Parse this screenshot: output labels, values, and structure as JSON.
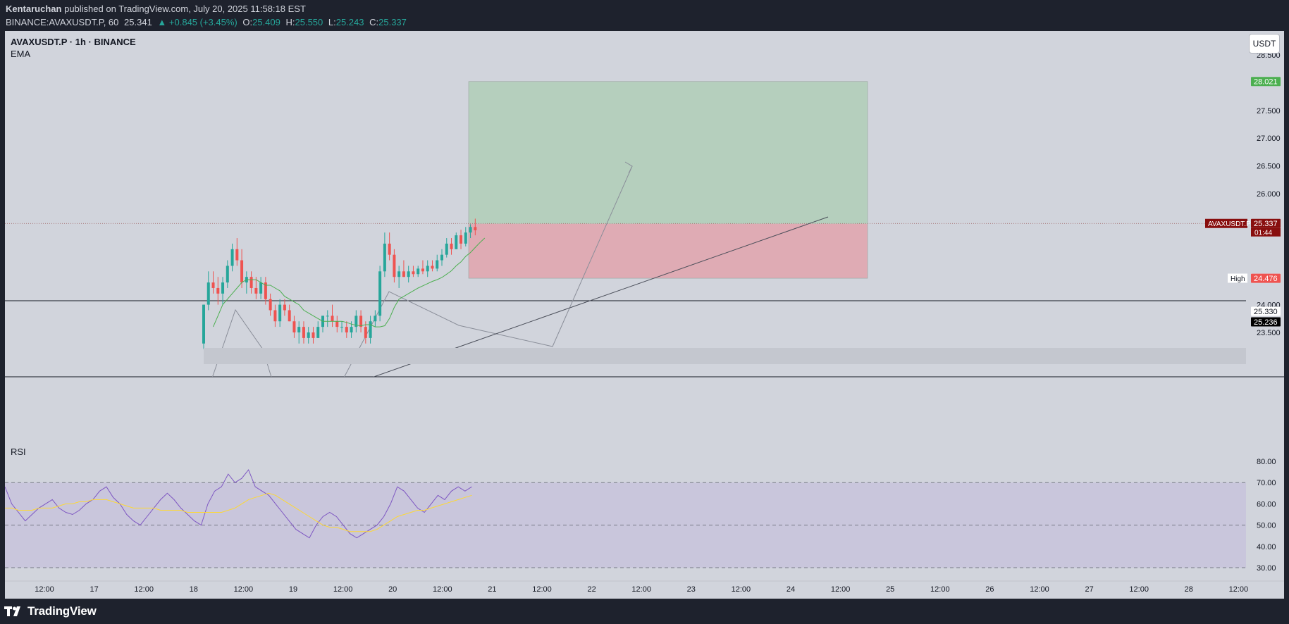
{
  "header": {
    "author": "Kentaruchan",
    "published": "published on TradingView.com, July 20, 2025 11:58:18 EST",
    "symbol_line": "BINANCE:AVAXUSDT.P, 60",
    "last": "25.341",
    "change": "▲ +0.845 (+3.45%)",
    "open_label": "O:",
    "open": "25.409",
    "high_label": "H:",
    "high": "25.550",
    "low_label": "L:",
    "low": "25.243",
    "close_label": "C:",
    "close": "25.337"
  },
  "legend": {
    "symbol": "AVAXUSDT.P · 1h · BINANCE",
    "indicator": "EMA",
    "rsi": "RSI"
  },
  "currency_button": "USDT",
  "brand": "TradingView",
  "colors": {
    "background": "#d1d4dc",
    "up": "#26a69a",
    "down": "#ef5350",
    "profit_zone": "#b5cfbd",
    "loss_zone": "#dfabb4",
    "ema": "#4caf50",
    "rsi": "#7e57c2",
    "rsi_ma": "#fdd835",
    "rsi_band": "#c9c6dc"
  },
  "chart_data": {
    "type": "candlestick",
    "symbol": "AVAXUSDT.P",
    "timeframe": "1h",
    "y_ticks": [
      "28.500",
      "27.500",
      "27.000",
      "26.500",
      "26.000",
      "24.000",
      "23.500"
    ],
    "x_ticks": [
      "12:00",
      "17",
      "12:00",
      "18",
      "12:00",
      "19",
      "12:00",
      "20",
      "12:00",
      "21",
      "12:00",
      "22",
      "12:00",
      "23",
      "12:00",
      "24",
      "12:00",
      "25",
      "12:00",
      "26",
      "12:00",
      "27",
      "12:00",
      "28",
      "12:00"
    ],
    "ylim": [
      23.4,
      28.9
    ],
    "price_labels": [
      {
        "name": "target",
        "text": "28.021",
        "value": 28.021,
        "color": "#4caf50"
      },
      {
        "name": "high",
        "tag": "High",
        "text": "25.550",
        "value": 25.55
      },
      {
        "name": "current",
        "tag": "AVAXUSDT.P",
        "text": "25.337",
        "sub": "01:44",
        "value": 25.337,
        "color": "#880e0e"
      },
      {
        "name": "line",
        "text": "25.330",
        "value": 25.33
      },
      {
        "name": "ema",
        "text": "25.236",
        "value": 25.236,
        "color": "#000000"
      },
      {
        "name": "stop",
        "text": "24.476",
        "value": 24.476,
        "color": "#ef5350"
      }
    ],
    "position": {
      "entry": 25.33,
      "target": 28.021,
      "stop": 24.476
    },
    "candles": [
      {
        "o": 23.3,
        "h": 24.0,
        "l": 23.2,
        "c": 24.0
      },
      {
        "o": 24.0,
        "h": 24.6,
        "l": 23.9,
        "c": 24.4
      },
      {
        "o": 24.4,
        "h": 24.6,
        "l": 24.2,
        "c": 24.3
      },
      {
        "o": 24.3,
        "h": 24.5,
        "l": 24.0,
        "c": 24.2
      },
      {
        "o": 24.2,
        "h": 24.5,
        "l": 24.0,
        "c": 24.4
      },
      {
        "o": 24.4,
        "h": 24.8,
        "l": 24.3,
        "c": 24.7
      },
      {
        "o": 24.7,
        "h": 25.1,
        "l": 24.6,
        "c": 25.0
      },
      {
        "o": 25.0,
        "h": 25.2,
        "l": 24.7,
        "c": 24.8
      },
      {
        "o": 24.8,
        "h": 25.0,
        "l": 24.3,
        "c": 24.4
      },
      {
        "o": 24.4,
        "h": 24.6,
        "l": 24.2,
        "c": 24.5
      },
      {
        "o": 24.5,
        "h": 24.6,
        "l": 24.2,
        "c": 24.3
      },
      {
        "o": 24.3,
        "h": 24.5,
        "l": 24.1,
        "c": 24.2
      },
      {
        "o": 24.2,
        "h": 24.5,
        "l": 24.1,
        "c": 24.4
      },
      {
        "o": 24.4,
        "h": 24.5,
        "l": 24.0,
        "c": 24.1
      },
      {
        "o": 24.1,
        "h": 24.2,
        "l": 23.8,
        "c": 23.9
      },
      {
        "o": 23.9,
        "h": 24.0,
        "l": 23.6,
        "c": 23.7
      },
      {
        "o": 23.7,
        "h": 24.1,
        "l": 23.6,
        "c": 24.0
      },
      {
        "o": 24.0,
        "h": 24.1,
        "l": 23.8,
        "c": 23.9
      },
      {
        "o": 23.9,
        "h": 24.0,
        "l": 23.7,
        "c": 23.7
      },
      {
        "o": 23.7,
        "h": 23.8,
        "l": 23.4,
        "c": 23.5
      },
      {
        "o": 23.5,
        "h": 23.7,
        "l": 23.3,
        "c": 23.6
      },
      {
        "o": 23.6,
        "h": 23.7,
        "l": 23.3,
        "c": 23.4
      },
      {
        "o": 23.4,
        "h": 23.6,
        "l": 23.3,
        "c": 23.5
      },
      {
        "o": 23.5,
        "h": 23.6,
        "l": 23.3,
        "c": 23.4
      },
      {
        "o": 23.4,
        "h": 23.7,
        "l": 23.4,
        "c": 23.6
      },
      {
        "o": 23.6,
        "h": 23.8,
        "l": 23.5,
        "c": 23.8
      },
      {
        "o": 23.8,
        "h": 23.9,
        "l": 23.6,
        "c": 23.8
      },
      {
        "o": 23.8,
        "h": 24.0,
        "l": 23.6,
        "c": 23.7
      },
      {
        "o": 23.7,
        "h": 23.8,
        "l": 23.5,
        "c": 23.6
      },
      {
        "o": 23.6,
        "h": 23.7,
        "l": 23.5,
        "c": 23.6
      },
      {
        "o": 23.6,
        "h": 23.7,
        "l": 23.4,
        "c": 23.5
      },
      {
        "o": 23.5,
        "h": 23.7,
        "l": 23.4,
        "c": 23.6
      },
      {
        "o": 23.6,
        "h": 23.9,
        "l": 23.5,
        "c": 23.8
      },
      {
        "o": 23.8,
        "h": 23.9,
        "l": 23.5,
        "c": 23.6
      },
      {
        "o": 23.6,
        "h": 23.7,
        "l": 23.3,
        "c": 23.4
      },
      {
        "o": 23.4,
        "h": 23.8,
        "l": 23.3,
        "c": 23.7
      },
      {
        "o": 23.7,
        "h": 23.9,
        "l": 23.6,
        "c": 23.8
      },
      {
        "o": 23.8,
        "h": 24.7,
        "l": 23.7,
        "c": 24.6
      },
      {
        "o": 24.6,
        "h": 25.3,
        "l": 24.5,
        "c": 25.1
      },
      {
        "o": 25.1,
        "h": 25.3,
        "l": 24.8,
        "c": 24.9
      },
      {
        "o": 24.9,
        "h": 25.0,
        "l": 24.4,
        "c": 24.5
      },
      {
        "o": 24.5,
        "h": 24.7,
        "l": 24.3,
        "c": 24.6
      },
      {
        "o": 24.6,
        "h": 24.8,
        "l": 24.5,
        "c": 24.5
      },
      {
        "o": 24.5,
        "h": 24.7,
        "l": 24.4,
        "c": 24.6
      },
      {
        "o": 24.6,
        "h": 24.7,
        "l": 24.5,
        "c": 24.55
      },
      {
        "o": 24.55,
        "h": 24.7,
        "l": 24.5,
        "c": 24.65
      },
      {
        "o": 24.65,
        "h": 24.8,
        "l": 24.55,
        "c": 24.6
      },
      {
        "o": 24.6,
        "h": 24.8,
        "l": 24.5,
        "c": 24.7
      },
      {
        "o": 24.7,
        "h": 24.8,
        "l": 24.6,
        "c": 24.65
      },
      {
        "o": 24.65,
        "h": 24.9,
        "l": 24.6,
        "c": 24.8
      },
      {
        "o": 24.8,
        "h": 25.0,
        "l": 24.7,
        "c": 24.9
      },
      {
        "o": 24.9,
        "h": 25.2,
        "l": 24.85,
        "c": 25.1
      },
      {
        "o": 25.1,
        "h": 25.2,
        "l": 24.9,
        "c": 25.0
      },
      {
        "o": 25.0,
        "h": 25.3,
        "l": 25.0,
        "c": 25.25
      },
      {
        "o": 25.25,
        "h": 25.35,
        "l": 25.0,
        "c": 25.1
      },
      {
        "o": 25.1,
        "h": 25.4,
        "l": 25.05,
        "c": 25.3
      },
      {
        "o": 25.3,
        "h": 25.45,
        "l": 25.2,
        "c": 25.4
      },
      {
        "o": 25.4,
        "h": 25.55,
        "l": 25.25,
        "c": 25.34
      }
    ],
    "ema": [
      23.6,
      23.8,
      24.0,
      24.1,
      24.2,
      24.3,
      24.4,
      24.45,
      24.45,
      24.45,
      24.4,
      24.35,
      24.35,
      24.3,
      24.25,
      24.15,
      24.1,
      24.05,
      24.0,
      23.9,
      23.85,
      23.8,
      23.75,
      23.7,
      23.7,
      23.7,
      23.7,
      23.7,
      23.68,
      23.65,
      23.63,
      23.62,
      23.64,
      23.64,
      23.6,
      23.6,
      23.62,
      23.75,
      23.95,
      24.1,
      24.15,
      24.2,
      24.25,
      24.3,
      24.34,
      24.38,
      24.42,
      24.45,
      24.49,
      24.55,
      24.61,
      24.7,
      24.77,
      24.87,
      24.94,
      25.03,
      25.12,
      25.2
    ],
    "rsi": {
      "ylim": [
        28,
        82
      ],
      "y_ticks": [
        "80.00",
        "70.00",
        "60.00",
        "50.00",
        "40.00",
        "30.00"
      ],
      "levels": [
        70,
        50,
        30
      ],
      "values": [
        68,
        60,
        56,
        52,
        55,
        58,
        60,
        62,
        58,
        56,
        55,
        57,
        60,
        62,
        66,
        68,
        63,
        60,
        55,
        52,
        50,
        54,
        58,
        62,
        65,
        62,
        58,
        55,
        52,
        50,
        60,
        66,
        68,
        74,
        70,
        72,
        76,
        68,
        66,
        64,
        60,
        56,
        52,
        48,
        46,
        44,
        50,
        54,
        56,
        54,
        50,
        46,
        44,
        46,
        48,
        50,
        54,
        60,
        68,
        66,
        62,
        58,
        56,
        60,
        64,
        62,
        66,
        68,
        66,
        68
      ],
      "ma": [
        58,
        58,
        57,
        57,
        57,
        58,
        58,
        58,
        59,
        60,
        60,
        61,
        61,
        62,
        62,
        62,
        61,
        60,
        59,
        58,
        58,
        58,
        58,
        57,
        57,
        57,
        57,
        56,
        56,
        56,
        56,
        56,
        56,
        57,
        58,
        60,
        62,
        63,
        64,
        65,
        64,
        62,
        60,
        58,
        56,
        54,
        52,
        50,
        49,
        49,
        48,
        47,
        47,
        47,
        47,
        48,
        50,
        52,
        54,
        55,
        56,
        57,
        57,
        58,
        59,
        60,
        61,
        62,
        63,
        64
      ]
    }
  }
}
